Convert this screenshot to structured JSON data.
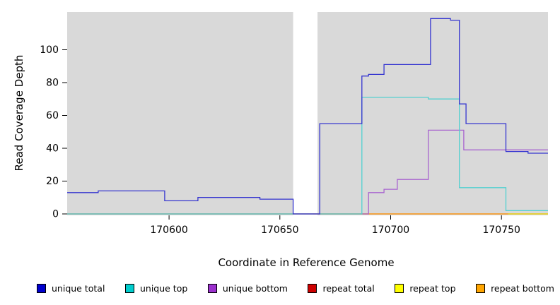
{
  "chart_data": {
    "type": "line",
    "title": "",
    "xlabel": "Coordinate in Reference Genome",
    "ylabel": "Read Coverage Depth",
    "xlim": [
      170554,
      170771
    ],
    "ylim": [
      0,
      123
    ],
    "x_ticks": [
      170600,
      170650,
      170700,
      170750
    ],
    "y_ticks": [
      0,
      20,
      40,
      60,
      80,
      100
    ],
    "grid": false,
    "legend_position": "bottom",
    "plot_bg": "#d9d9d9",
    "gap_region": {
      "x0": 170656,
      "x1": 170667,
      "color": "#ffffff"
    },
    "series": [
      {
        "name": "repeat total",
        "color": "#cd0000",
        "points": [
          [
            170554,
            0
          ],
          [
            170771,
            0
          ]
        ]
      },
      {
        "name": "repeat top",
        "color": "#ecec00",
        "points": [
          [
            170554,
            0
          ],
          [
            170771,
            0
          ]
        ]
      },
      {
        "name": "repeat bottom",
        "color": "#ff9d27",
        "points": [
          [
            170665,
            0
          ],
          [
            170753,
            0
          ]
        ]
      },
      {
        "name": "unique bottom",
        "color": "#a864cf",
        "points": [
          [
            170554,
            0
          ],
          [
            170690,
            13
          ],
          [
            170697,
            15
          ],
          [
            170703,
            21
          ],
          [
            170717,
            51
          ],
          [
            170733,
            39
          ],
          [
            170771,
            39
          ]
        ]
      },
      {
        "name": "unique top",
        "color": "#52d0d0",
        "points": [
          [
            170554,
            0
          ],
          [
            170687,
            71
          ],
          [
            170717,
            70
          ],
          [
            170731,
            16
          ],
          [
            170752,
            2
          ],
          [
            170771,
            2
          ]
        ]
      },
      {
        "name": "unique total",
        "color": "#3535d0",
        "points": [
          [
            170554,
            13
          ],
          [
            170568,
            14
          ],
          [
            170598,
            8
          ],
          [
            170613,
            10
          ],
          [
            170641,
            9
          ],
          [
            170656,
            0
          ],
          [
            170668,
            55
          ],
          [
            170687,
            84
          ],
          [
            170690,
            85
          ],
          [
            170697,
            91
          ],
          [
            170718,
            119
          ],
          [
            170727,
            118
          ],
          [
            170731,
            67
          ],
          [
            170734,
            55
          ],
          [
            170752,
            38
          ],
          [
            170762,
            37
          ],
          [
            170771,
            37
          ]
        ]
      }
    ],
    "legend": [
      {
        "label": "unique total",
        "color": "#0000cd"
      },
      {
        "label": "unique top",
        "color": "#00cdcd"
      },
      {
        "label": "unique bottom",
        "color": "#9b30cd"
      },
      {
        "label": "repeat total",
        "color": "#cd0000"
      },
      {
        "label": "repeat top",
        "color": "#ffff00"
      },
      {
        "label": "repeat bottom",
        "color": "#ffa500"
      }
    ]
  }
}
